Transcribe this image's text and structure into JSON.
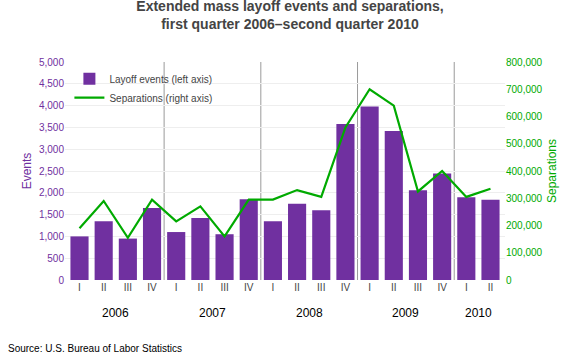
{
  "chart_data": {
    "type": "bar",
    "title": "Extended mass layoff events and separations,\nfirst quarter 2006–second quarter 2010",
    "categories": [
      "I",
      "II",
      "III",
      "IV",
      "I",
      "II",
      "III",
      "IV",
      "I",
      "II",
      "III",
      "IV",
      "I",
      "II",
      "III",
      "IV",
      "I",
      "II"
    ],
    "annotations": [
      "2006",
      "2007",
      "2008",
      "2009",
      "2010"
    ],
    "source": "Source: U.S. Bureau of Labor Statistics",
    "series": [
      {
        "name": "Layoff events (left axis)",
        "type": "bar",
        "color": "#7030A0",
        "values": [
          1000,
          1350,
          950,
          1650,
          1100,
          1420,
          1050,
          1850,
          1350,
          1750,
          1600,
          3580,
          3980,
          3420,
          2060,
          2440,
          1900,
          1840
        ]
      },
      {
        "name": "Separations (right axis)",
        "type": "line",
        "axis": "y2",
        "color": "#00AA00",
        "values": [
          190000,
          290000,
          155000,
          295000,
          215000,
          270000,
          160000,
          295000,
          295000,
          330000,
          305000,
          560000,
          700000,
          640000,
          325000,
          400000,
          305000,
          335000
        ]
      }
    ],
    "ylabel": "Events",
    "y2label": "Separations",
    "ylim": [
      0,
      5000
    ],
    "yticks": [
      0,
      500,
      {
        "value": 1000,
        "label": "1,000"
      },
      {
        "value": 1500,
        "label": "1,500"
      },
      {
        "value": 2000,
        "label": "2,000"
      },
      {
        "value": 2500,
        "label": "2,500"
      },
      {
        "value": 3000,
        "label": "3,000"
      },
      {
        "value": 3500,
        "label": "3,500"
      },
      {
        "value": 4000,
        "label": "4,000"
      },
      {
        "value": 4500,
        "label": "4,500"
      },
      {
        "value": 5000,
        "label": "5,000"
      }
    ],
    "y2lim": [
      0,
      800000
    ],
    "y2ticks": [
      0,
      {
        "value": 100000,
        "label": "100,000"
      },
      {
        "value": 200000,
        "label": "200,000"
      },
      {
        "value": 300000,
        "label": "300,000"
      },
      {
        "value": 400000,
        "label": "400,000"
      },
      {
        "value": 500000,
        "label": "500,000"
      },
      {
        "value": 600000,
        "label": "600,000"
      },
      {
        "value": 700000,
        "label": "700,000"
      },
      {
        "value": 800000,
        "label": "800,000"
      }
    ],
    "grid": true,
    "legend": "upper left"
  }
}
